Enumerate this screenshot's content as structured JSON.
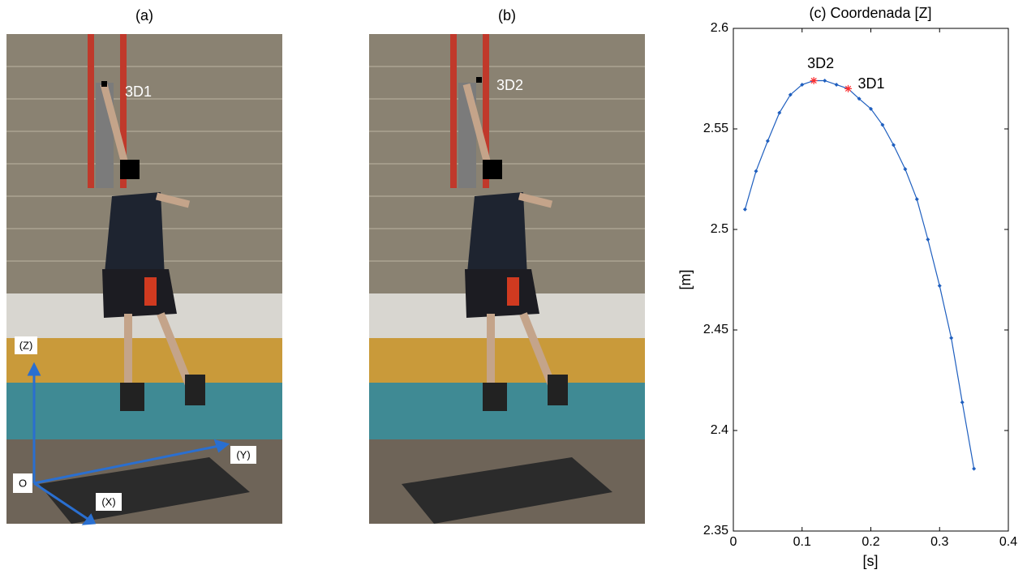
{
  "panels": [
    {
      "label": "(a)",
      "marker": "3D1",
      "axes": [
        "(Z)",
        "(Y)",
        "(X)",
        "O"
      ]
    },
    {
      "label": "(b)",
      "marker": "3D2"
    }
  ],
  "chart_data": {
    "type": "line",
    "title": "(c) Coordenada [Z]",
    "x_label": "[s]",
    "y_label": "[m]",
    "x": [
      0.017,
      0.033,
      0.05,
      0.067,
      0.083,
      0.1,
      0.117,
      0.133,
      0.15,
      0.167,
      0.183,
      0.2,
      0.217,
      0.233,
      0.25,
      0.267,
      0.283,
      0.3,
      0.317,
      0.333,
      0.35
    ],
    "series": [
      {
        "color": "#1f5fbf",
        "values": [
          2.51,
          2.529,
          2.544,
          2.558,
          2.567,
          2.572,
          2.574,
          2.574,
          2.572,
          2.57,
          2.565,
          2.56,
          2.552,
          2.542,
          2.53,
          2.515,
          2.495,
          2.472,
          2.446,
          2.414,
          2.381
        ]
      }
    ],
    "annotations": [
      {
        "text": "3D2",
        "x": 0.117,
        "y": 2.574,
        "color": "#ff3030"
      },
      {
        "text": "3D1",
        "x": 0.167,
        "y": 2.57,
        "color": "#ff3030"
      }
    ],
    "xlim": [
      0,
      0.4
    ],
    "xticks": [
      0,
      0.1,
      0.2,
      0.3,
      0.4
    ],
    "ylim": [
      2.35,
      2.6
    ],
    "yticks": [
      2.35,
      2.4,
      2.45,
      2.5,
      2.55,
      2.6
    ]
  }
}
